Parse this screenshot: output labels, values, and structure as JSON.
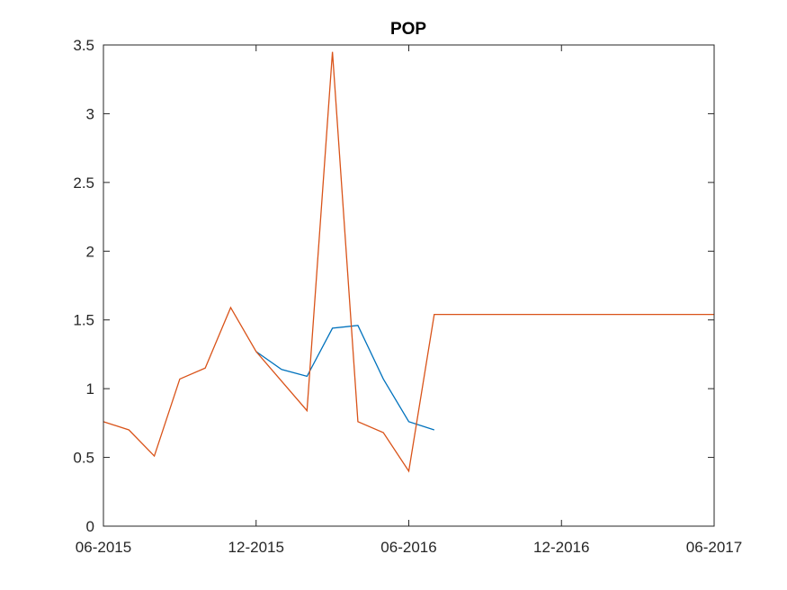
{
  "chart_data": {
    "type": "line",
    "title": "POP",
    "xlabel": "",
    "ylabel": "",
    "xlim": [
      "2015-06",
      "2017-06"
    ],
    "ylim": [
      0,
      3.5
    ],
    "xticks": [
      {
        "value": "2015-06",
        "label": "06-2015"
      },
      {
        "value": "2015-12",
        "label": "12-2015"
      },
      {
        "value": "2016-06",
        "label": "06-2016"
      },
      {
        "value": "2016-12",
        "label": "12-2016"
      },
      {
        "value": "2017-06",
        "label": "06-2017"
      }
    ],
    "yticks": [
      {
        "value": 0,
        "label": "0"
      },
      {
        "value": 0.5,
        "label": "0.5"
      },
      {
        "value": 1,
        "label": "1"
      },
      {
        "value": 1.5,
        "label": "1.5"
      },
      {
        "value": 2,
        "label": "2"
      },
      {
        "value": 2.5,
        "label": "2.5"
      },
      {
        "value": 3,
        "label": "3"
      },
      {
        "value": 3.5,
        "label": "3.5"
      }
    ],
    "grid": false,
    "box": true,
    "series": [
      {
        "color": "#0072BD",
        "points": [
          {
            "x": "2015-12",
            "y": 1.27
          },
          {
            "x": "2016-01",
            "y": 1.14
          },
          {
            "x": "2016-02",
            "y": 1.09
          },
          {
            "x": "2016-03",
            "y": 1.44
          },
          {
            "x": "2016-04",
            "y": 1.46
          },
          {
            "x": "2016-05",
            "y": 1.07
          },
          {
            "x": "2016-06",
            "y": 0.76
          },
          {
            "x": "2016-07",
            "y": 0.7
          }
        ]
      },
      {
        "color": "#D95319",
        "points": [
          {
            "x": "2015-06",
            "y": 0.76
          },
          {
            "x": "2015-07",
            "y": 0.7
          },
          {
            "x": "2015-08",
            "y": 0.51
          },
          {
            "x": "2015-09",
            "y": 1.07
          },
          {
            "x": "2015-10",
            "y": 1.15
          },
          {
            "x": "2015-11",
            "y": 1.59
          },
          {
            "x": "2015-12",
            "y": 1.27
          },
          {
            "x": "2016-02",
            "y": 0.84
          },
          {
            "x": "2016-03",
            "y": 3.45
          },
          {
            "x": "2016-04",
            "y": 0.76
          },
          {
            "x": "2016-05",
            "y": 0.68
          },
          {
            "x": "2016-06",
            "y": 0.4
          },
          {
            "x": "2016-07",
            "y": 1.54
          },
          {
            "x": "2017-06",
            "y": 1.54
          }
        ]
      }
    ]
  }
}
